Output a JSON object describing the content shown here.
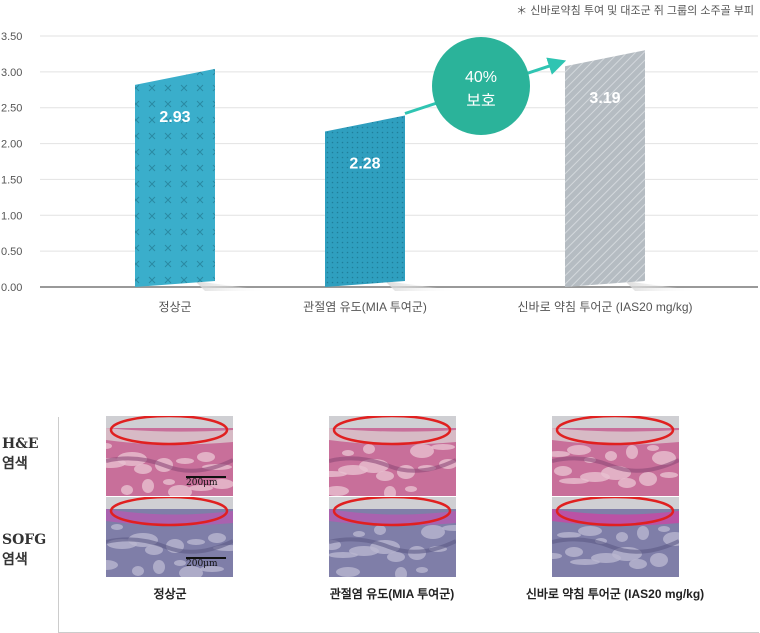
{
  "note": "＊ 신바로약침 투여 및 대조군 쥐 그룹의 소주골 부피",
  "chart_data": {
    "type": "bar",
    "categories": [
      "정상군",
      "관절염 유도(MIA 투여군)",
      "신바로 약침 투어군 (IAS20 mg/kg)"
    ],
    "values": [
      2.93,
      2.28,
      3.19
    ],
    "value_labels": [
      "2.93",
      "2.28",
      "3.19"
    ],
    "yticks": [
      "0.00",
      "0.50",
      "1.00",
      "1.50",
      "2.00",
      "2.50",
      "3.00",
      "3.50"
    ],
    "ylim": [
      0,
      3.5
    ],
    "grid": true,
    "bar_colors": [
      "#3aaecb",
      "#2f9fbf",
      "#b5bcc2"
    ],
    "badge": {
      "line1": "40%",
      "line2": "보호",
      "color": "#2bb39a"
    }
  },
  "histology": {
    "row_labels": [
      [
        "H&E",
        "염색"
      ],
      [
        "SOFG",
        "염색"
      ]
    ],
    "scale_label": "200μm",
    "group_labels": [
      "정상군",
      "관절염 유도(MIA 투여군)",
      "신바로 약침 투어군 (IAS20 mg/kg)"
    ],
    "highlight_color": "#e02020"
  }
}
